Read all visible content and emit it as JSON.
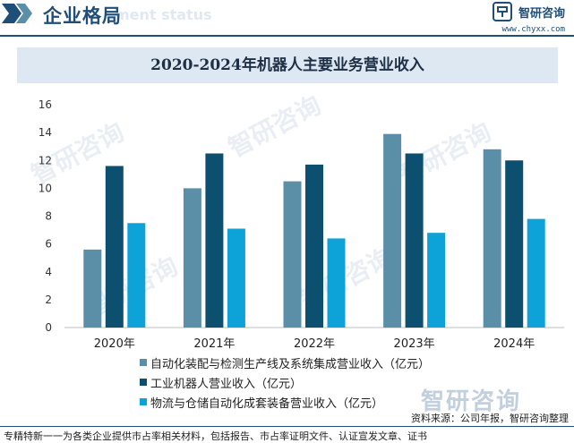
{
  "header": {
    "title": "企业格局",
    "subtitle": "ment status",
    "brand_name": "智研咨询",
    "brand_url": "www.chyxx.com"
  },
  "chart_data": {
    "type": "bar",
    "title": "2020-2024年机器人主要业务营业收入",
    "categories": [
      "2020年",
      "2021年",
      "2022年",
      "2023年",
      "2024年"
    ],
    "series": [
      {
        "name": "自动化装配与检测生产线及系统集成营业收入（亿元）",
        "color": "#5b8fa8",
        "values": [
          5.6,
          10.0,
          10.5,
          13.9,
          12.8
        ]
      },
      {
        "name": "工业机器人营业收入（亿元）",
        "color": "#0d4f6e",
        "values": [
          11.6,
          12.5,
          11.7,
          12.5,
          12.0
        ]
      },
      {
        "name": "物流与仓储自动化成套装备营业收入（亿元）",
        "color": "#0ea3d8",
        "values": [
          7.5,
          7.1,
          6.4,
          6.8,
          7.8
        ]
      }
    ],
    "y_ticks": [
      "0",
      "2",
      "4",
      "6",
      "8",
      "10",
      "12",
      "14",
      "16"
    ],
    "ylim": [
      0,
      16
    ],
    "grid": false,
    "legend_position": "bottom"
  },
  "watermark": {
    "text": "智研咨询"
  },
  "source": "资料来源：公司年报，智研咨询整理",
  "footer": "专精特新一一为各类企业提供市占率相关材料，包括报告、市占率证明文件、认证宣发文章、证书"
}
